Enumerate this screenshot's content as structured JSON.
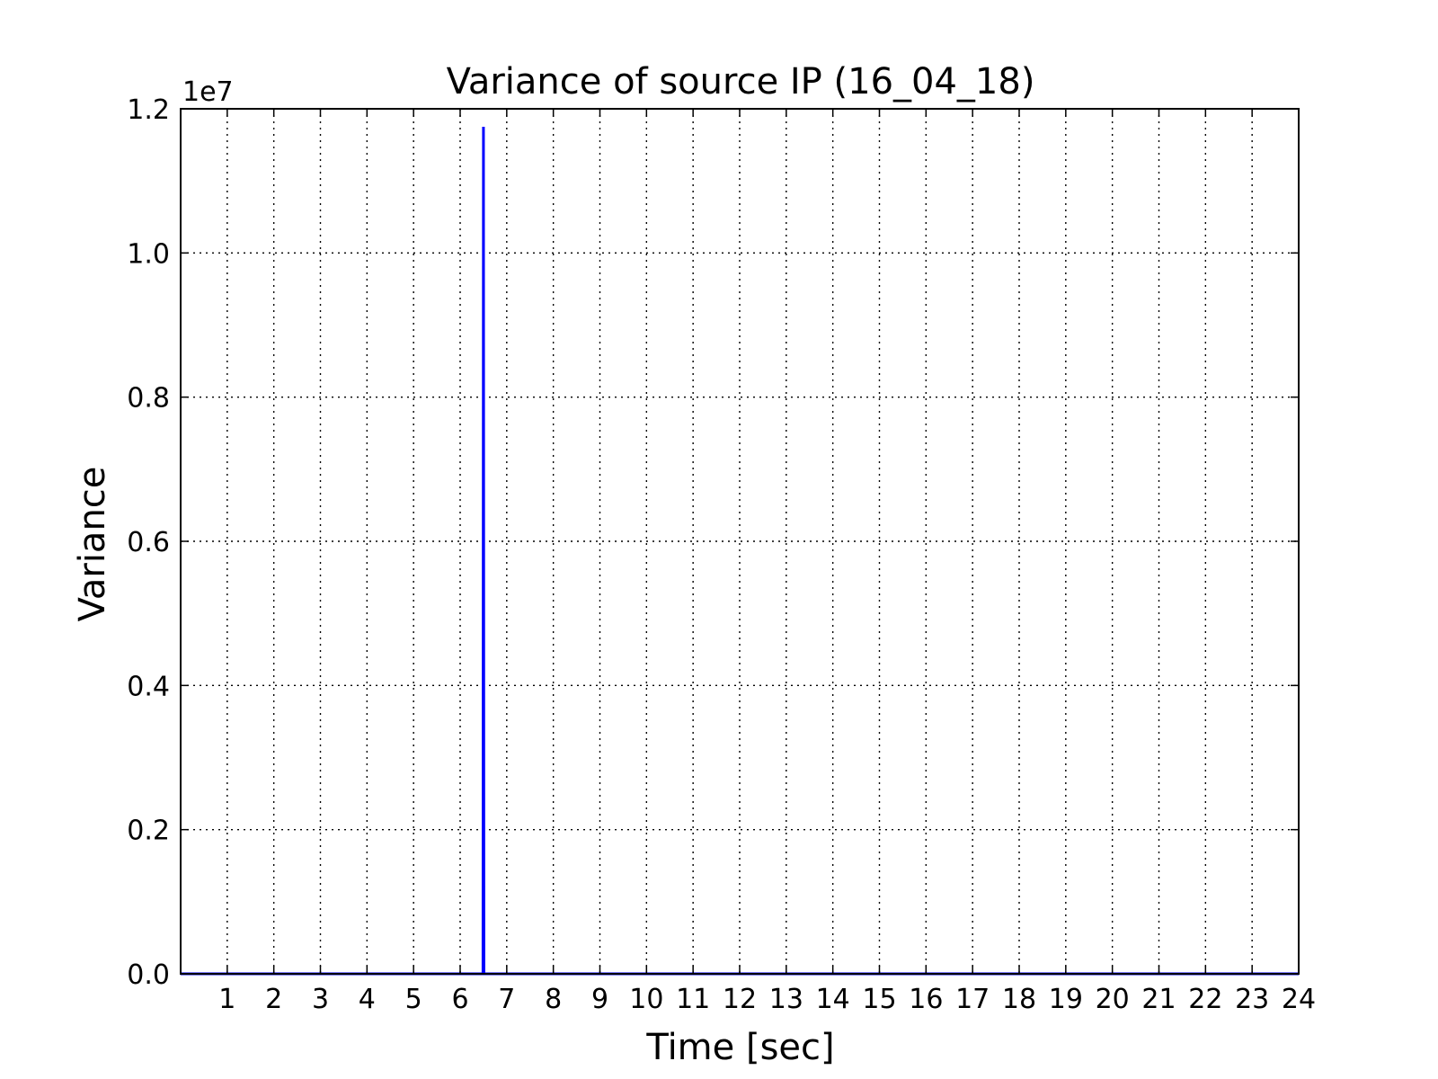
{
  "chart_data": {
    "type": "line",
    "title": "Variance of source IP (16_04_18)",
    "xlabel": "Time [sec]",
    "ylabel": "Variance",
    "y_offset_label": "1e7",
    "xlim": [
      0,
      24
    ],
    "ylim": [
      0,
      1.2
    ],
    "x_ticks": [
      1,
      2,
      3,
      4,
      5,
      6,
      7,
      8,
      9,
      10,
      11,
      12,
      13,
      14,
      15,
      16,
      17,
      18,
      19,
      20,
      21,
      22,
      23,
      24
    ],
    "x_tick_labels": [
      "1",
      "2",
      "3",
      "4",
      "5",
      "6",
      "7",
      "8",
      "9",
      "10",
      "11",
      "12",
      "13",
      "14",
      "15",
      "16",
      "17",
      "18",
      "19",
      "20",
      "21",
      "22",
      "23",
      "24"
    ],
    "y_ticks": [
      0,
      0.2,
      0.4,
      0.6,
      0.8,
      1.0,
      1.2
    ],
    "y_tick_labels": [
      "0.0",
      "0.2",
      "0.4",
      "0.6",
      "0.8",
      "1.0",
      "1.2"
    ],
    "grid": true,
    "series": [
      {
        "color": "#0000ff",
        "x": [
          0,
          6.49,
          6.5,
          6.51,
          24
        ],
        "y": [
          0,
          0,
          1.175,
          0,
          0
        ]
      }
    ]
  }
}
